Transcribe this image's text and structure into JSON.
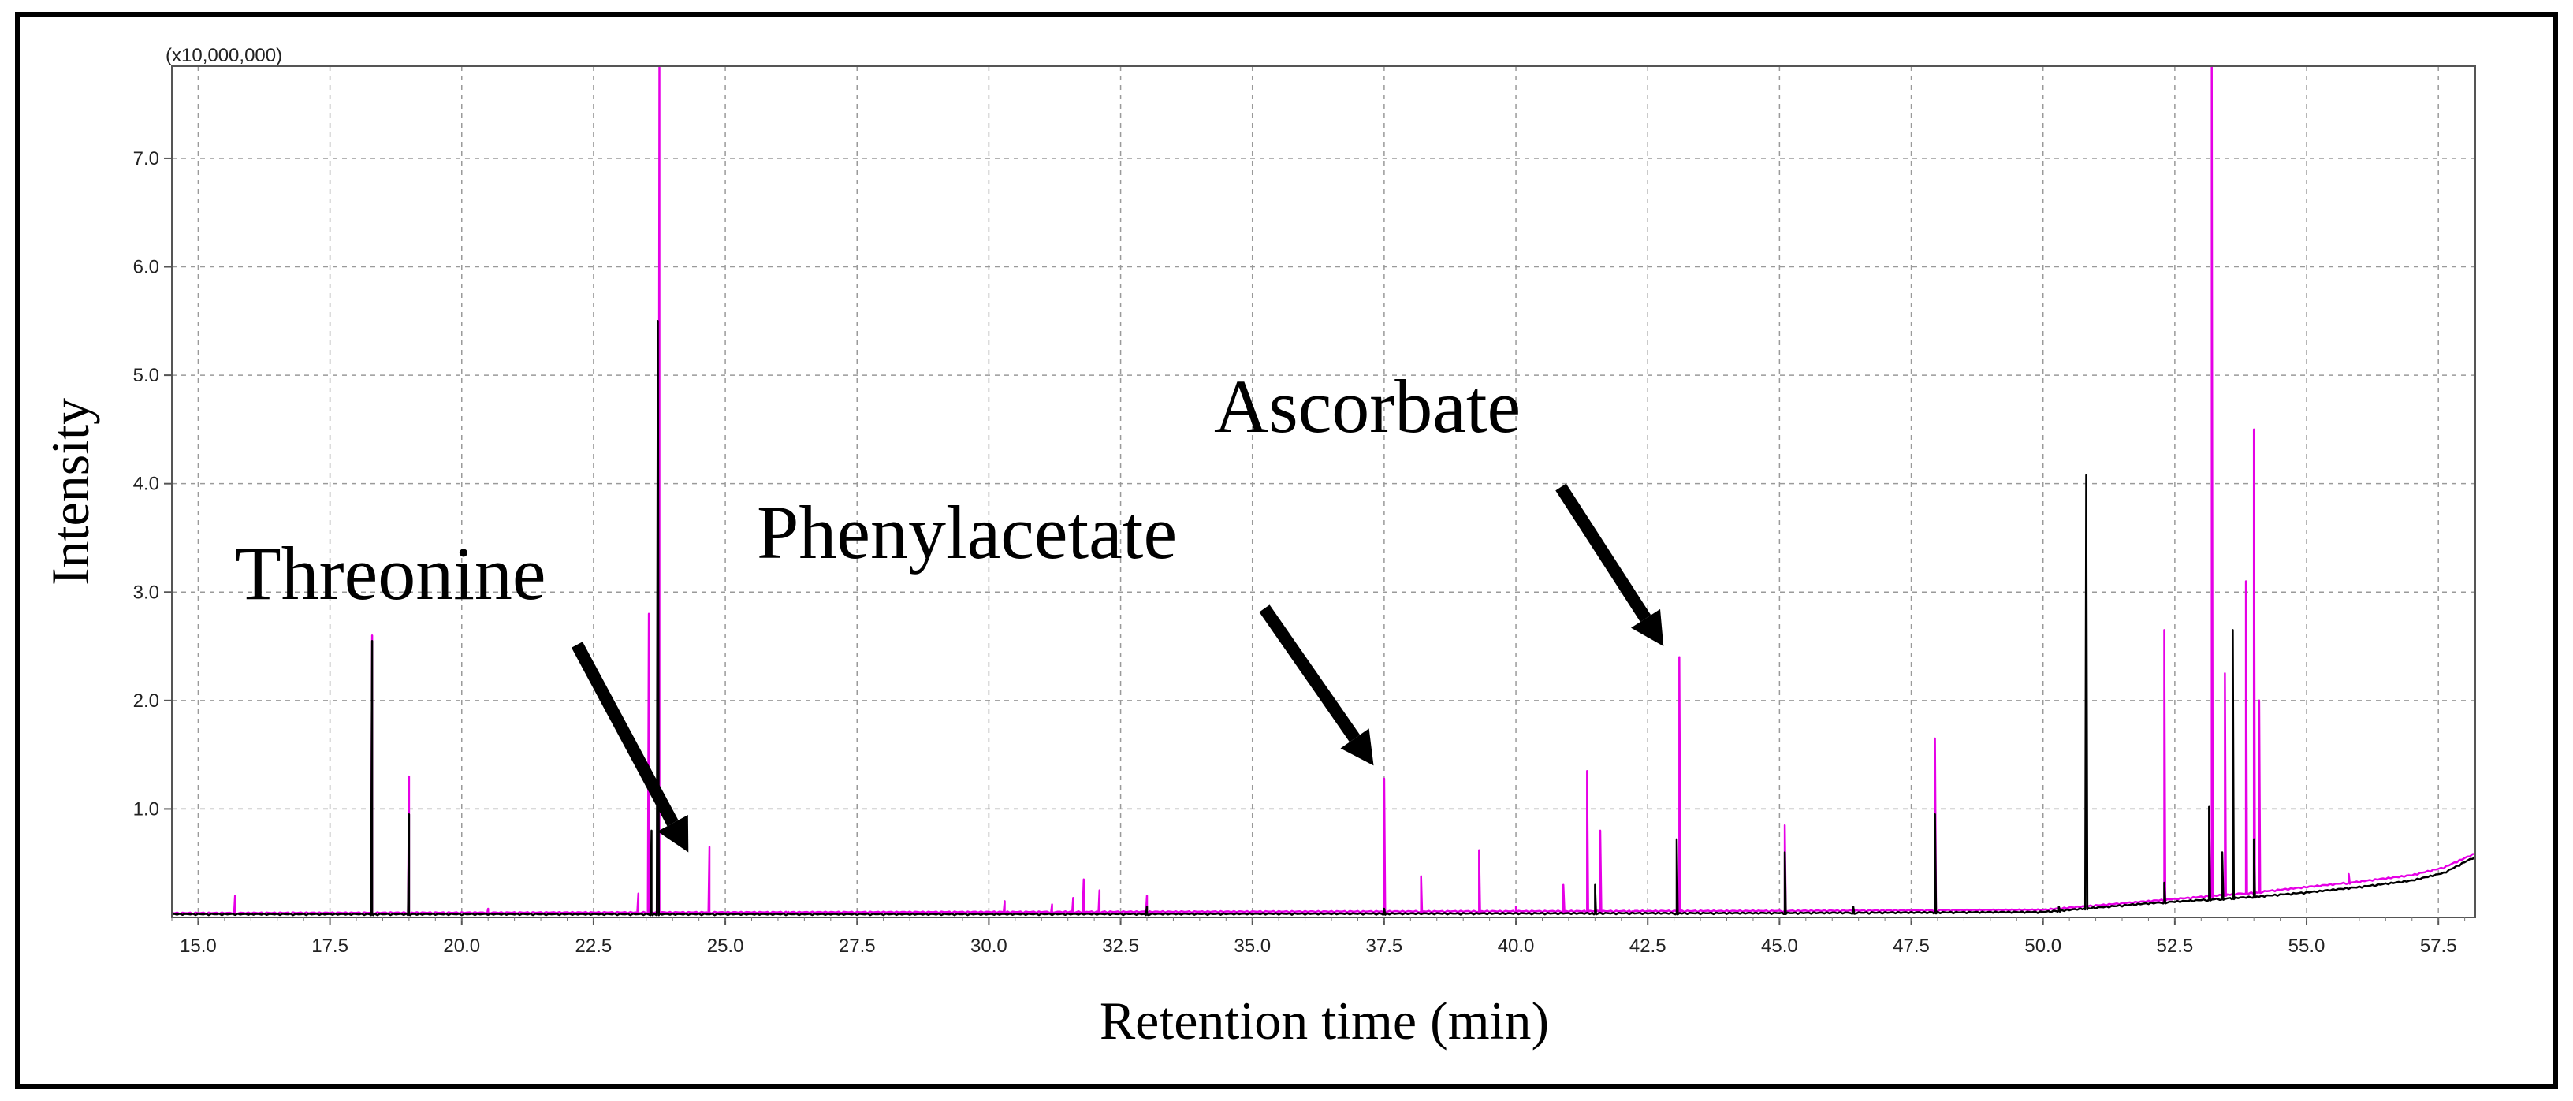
{
  "chart_data": {
    "type": "line",
    "title": "",
    "xlabel": "Retention time (min)",
    "ylabel": "Intensity",
    "y_scale_label": "(x10,000,000)",
    "xlim": [
      14.5,
      58.2
    ],
    "ylim": [
      0,
      7.85
    ],
    "grid": true,
    "x_ticks": [
      "15.0",
      "17.5",
      "20.0",
      "22.5",
      "25.0",
      "27.5",
      "30.0",
      "32.5",
      "35.0",
      "37.5",
      "40.0",
      "42.5",
      "45.0",
      "47.5",
      "50.0",
      "52.5",
      "55.0",
      "57.5"
    ],
    "y_ticks": [
      "1.0",
      "2.0",
      "3.0",
      "4.0",
      "5.0",
      "6.0",
      "7.0"
    ],
    "colors": {
      "black_series": "#000000",
      "magenta_series": "#e600e6",
      "grid": "#9a9a9a",
      "border": "#000000"
    },
    "series": [
      {
        "name": "black",
        "baseline": [
          [
            14.5,
            0.02
          ],
          [
            30,
            0.02
          ],
          [
            45,
            0.03
          ],
          [
            50,
            0.04
          ],
          [
            51,
            0.08
          ],
          [
            52,
            0.12
          ],
          [
            53,
            0.15
          ],
          [
            54,
            0.18
          ],
          [
            55,
            0.22
          ],
          [
            56,
            0.27
          ],
          [
            57,
            0.33
          ],
          [
            57.6,
            0.4
          ],
          [
            58.2,
            0.55
          ]
        ],
        "peaks": [
          [
            18.3,
            2.55
          ],
          [
            19.0,
            0.95
          ],
          [
            23.6,
            0.8
          ],
          [
            23.72,
            5.5
          ],
          [
            33.0,
            0.1
          ],
          [
            37.5,
            0.08
          ],
          [
            41.5,
            0.3
          ],
          [
            43.05,
            0.72
          ],
          [
            45.1,
            0.6
          ],
          [
            46.4,
            0.1
          ],
          [
            47.95,
            0.95
          ],
          [
            50.3,
            0.1
          ],
          [
            50.82,
            4.08
          ],
          [
            52.3,
            0.32
          ],
          [
            53.15,
            1.02
          ],
          [
            53.4,
            0.6
          ],
          [
            53.6,
            2.65
          ],
          [
            54.0,
            0.72
          ]
        ]
      },
      {
        "name": "magenta",
        "baseline": [
          [
            14.5,
            0.03
          ],
          [
            30,
            0.04
          ],
          [
            45,
            0.05
          ],
          [
            50,
            0.06
          ],
          [
            51,
            0.1
          ],
          [
            52,
            0.14
          ],
          [
            53,
            0.18
          ],
          [
            54,
            0.22
          ],
          [
            55,
            0.27
          ],
          [
            56,
            0.32
          ],
          [
            57,
            0.38
          ],
          [
            57.6,
            0.45
          ],
          [
            58.2,
            0.58
          ]
        ],
        "peaks": [
          [
            15.7,
            0.2
          ],
          [
            18.3,
            2.6
          ],
          [
            19.0,
            1.3
          ],
          [
            20.5,
            0.08
          ],
          [
            23.35,
            0.22
          ],
          [
            23.55,
            2.8
          ],
          [
            23.75,
            7.85
          ],
          [
            24.7,
            0.65
          ],
          [
            26.2,
            0.05
          ],
          [
            30.3,
            0.15
          ],
          [
            31.2,
            0.12
          ],
          [
            31.6,
            0.18
          ],
          [
            31.8,
            0.35
          ],
          [
            32.1,
            0.25
          ],
          [
            33.0,
            0.2
          ],
          [
            37.5,
            1.28
          ],
          [
            38.2,
            0.38
          ],
          [
            39.3,
            0.62
          ],
          [
            40.0,
            0.1
          ],
          [
            40.9,
            0.3
          ],
          [
            41.35,
            1.35
          ],
          [
            41.6,
            0.8
          ],
          [
            42.2,
            0.05
          ],
          [
            43.1,
            2.4
          ],
          [
            45.1,
            0.85
          ],
          [
            47.95,
            1.65
          ],
          [
            52.3,
            2.65
          ],
          [
            53.2,
            7.85
          ],
          [
            53.45,
            2.25
          ],
          [
            53.85,
            3.1
          ],
          [
            54.0,
            4.5
          ],
          [
            54.1,
            2.0
          ],
          [
            55.8,
            0.4
          ]
        ]
      }
    ],
    "annotations": [
      {
        "text": "Threonine",
        "target": [
          24.3,
          0.6
        ]
      },
      {
        "text": "Phenylacetate",
        "target": [
          37.3,
          1.4
        ]
      },
      {
        "text": "Ascorbate",
        "target": [
          42.8,
          2.5
        ]
      }
    ]
  }
}
